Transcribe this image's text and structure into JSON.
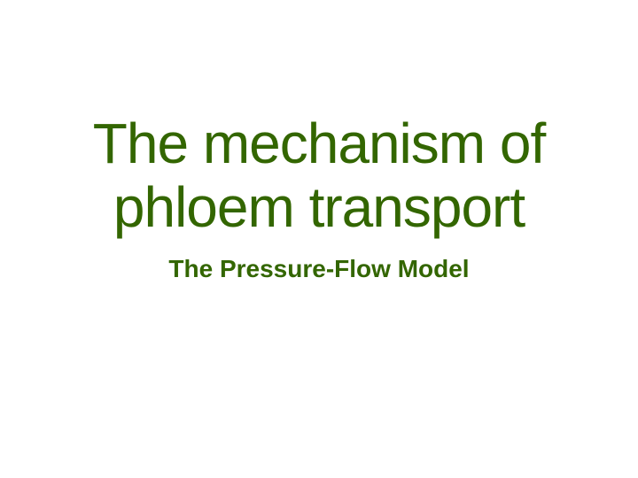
{
  "slide": {
    "title_line1": "The mechanism of",
    "title_line2": "phloem transport",
    "subtitle": "The Pressure-Flow Model",
    "title_color": "#336600",
    "subtitle_color": "#336600",
    "background_color": "#ffffff",
    "title_fontsize": 64,
    "subtitle_fontsize": 28,
    "title_fontweight": "normal",
    "subtitle_fontweight": "bold"
  }
}
